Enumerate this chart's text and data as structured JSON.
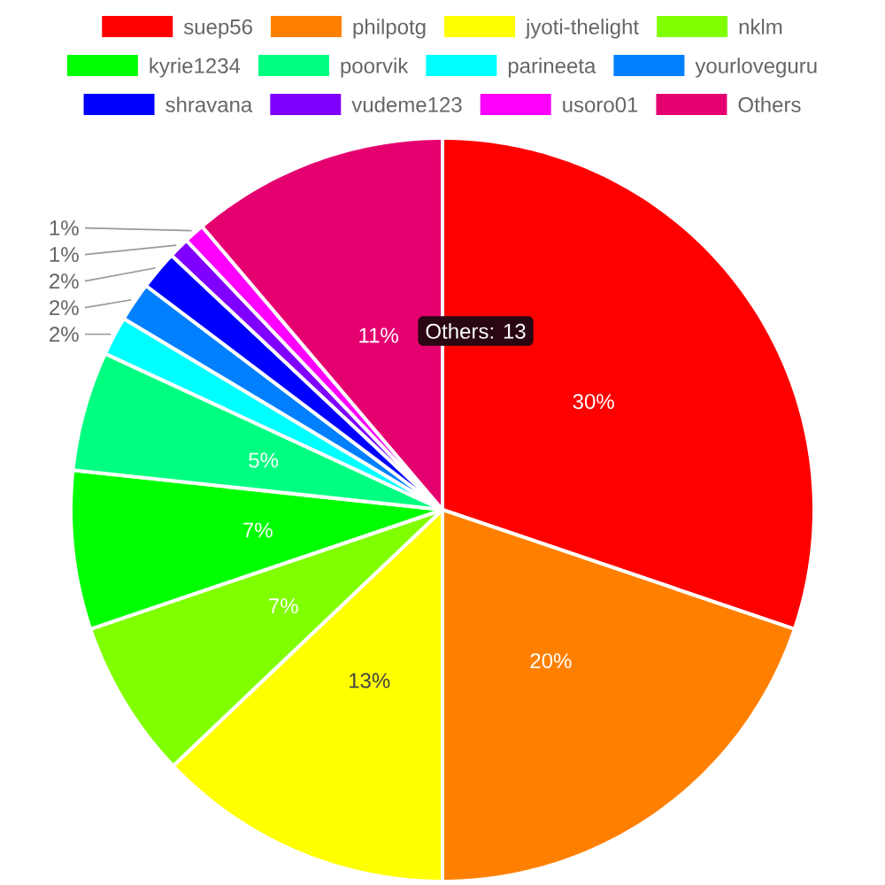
{
  "chart_data": {
    "type": "pie",
    "categories": [
      "suep56",
      "philpotg",
      "jyoti-thelight",
      "nklm",
      "kyrie1234",
      "poorvik",
      "parineeta",
      "yourloveguru",
      "shravana",
      "vudeme123",
      "usoro01",
      "Others"
    ],
    "values": [
      30.2,
      19.8,
      12.9,
      6.9,
      6.9,
      5.2,
      1.7,
      1.7,
      1.7,
      0.9,
      0.9,
      11.2
    ],
    "colors": [
      "#ff0000",
      "#ff8000",
      "#ffff00",
      "#80ff00",
      "#00ff00",
      "#00ff80",
      "#00ffff",
      "#0080ff",
      "#0000ff",
      "#8000ff",
      "#ff00ff",
      "#e5006f"
    ],
    "value_labels": [
      "30%",
      "20%",
      "13%",
      "7%",
      "7%",
      "5%",
      "2%",
      "2%",
      "2%",
      "1%",
      "1%",
      "11%"
    ],
    "legend": "top",
    "annotations": [
      "Others: 13"
    ]
  }
}
